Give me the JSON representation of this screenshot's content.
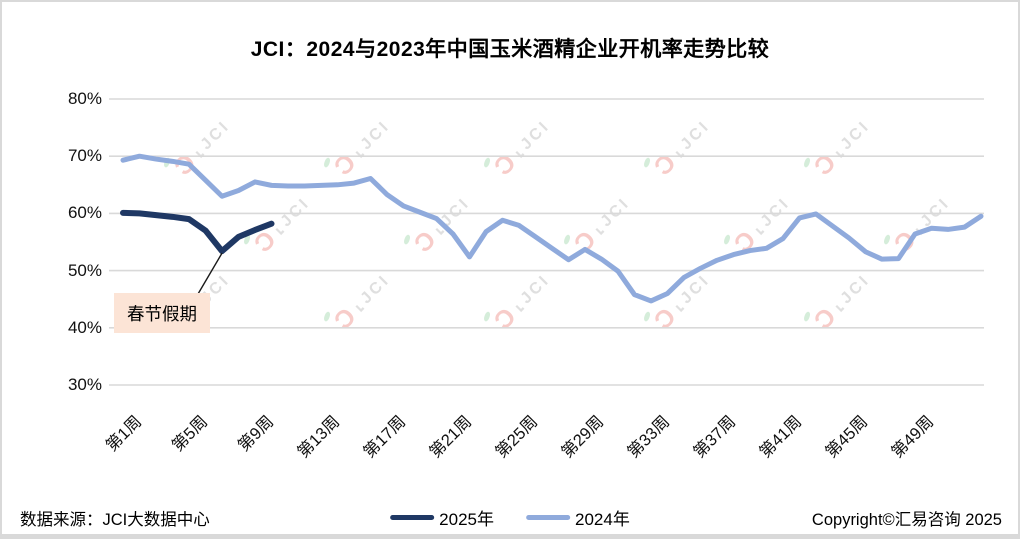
{
  "title": "JCI：2024与2023年中国玉米酒精企业开机率走势比较",
  "watermark": {
    "text": "JCI"
  },
  "annotation": {
    "label": "春节假期",
    "bg_color": "#fce4d6",
    "points_to": {
      "series": "2025年",
      "week": 7
    }
  },
  "footer": {
    "source": "数据来源：JCI大数据中心",
    "copyright": "Copyright©汇易咨询 2025"
  },
  "chart_data": {
    "type": "line",
    "title": "JCI：2024与2023年中国玉米酒精企业开机率走势比较",
    "grid": true,
    "legend_position": "bottom",
    "y_axis": {
      "unit": "%",
      "ylim": [
        30,
        80
      ],
      "tick_values": [
        80,
        70,
        60,
        50,
        40,
        30
      ],
      "tick_labels": [
        "80%",
        "70%",
        "60%",
        "50%",
        "40%",
        "30%"
      ]
    },
    "x_axis": {
      "unit": "周",
      "range_weeks": [
        1,
        53
      ],
      "tick_weeks": [
        1,
        5,
        9,
        13,
        17,
        21,
        25,
        29,
        33,
        37,
        41,
        45,
        49
      ],
      "tick_labels": [
        "第1周",
        "第5周",
        "第9周",
        "第13周",
        "第17周",
        "第21周",
        "第25周",
        "第29周",
        "第33周",
        "第37周",
        "第41周",
        "第45周",
        "第49周"
      ]
    },
    "series": [
      {
        "name": "2025年",
        "color": "#1f3864",
        "start_week": 1,
        "values": [
          60.1,
          60.0,
          59.7,
          59.4,
          59.0,
          57.0,
          53.4,
          55.9,
          57.1,
          58.2
        ]
      },
      {
        "name": "2024年",
        "color": "#8faadc",
        "start_week": 1,
        "values": [
          69.3,
          70.0,
          69.5,
          69.1,
          68.6,
          65.8,
          63.0,
          64.0,
          65.5,
          64.9,
          64.8,
          64.8,
          64.9,
          65.0,
          65.3,
          66.1,
          63.3,
          61.3,
          60.2,
          59.1,
          56.4,
          52.4,
          56.8,
          58.8,
          57.9,
          55.9,
          53.9,
          51.9,
          53.7,
          52.0,
          49.9,
          45.8,
          44.7,
          46.0,
          48.8,
          50.4,
          51.8,
          52.8,
          53.5,
          53.9,
          55.6,
          59.2,
          59.9,
          57.8,
          55.7,
          53.3,
          52.0,
          52.1,
          56.4,
          57.4,
          57.2,
          57.6,
          59.5
        ]
      }
    ]
  }
}
